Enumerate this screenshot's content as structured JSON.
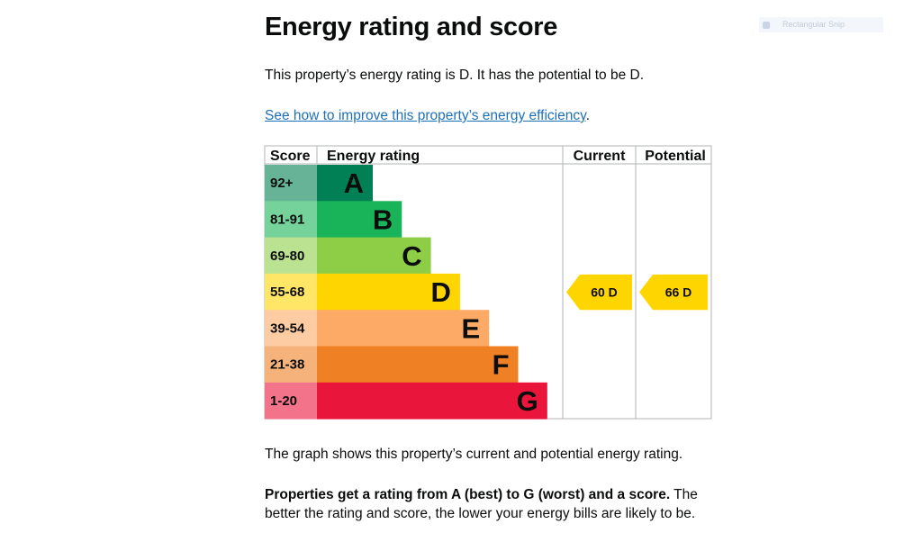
{
  "page": {
    "title": "Energy rating and score",
    "summary": "This property’s energy rating is D. It has the potential to be D.",
    "link_text": "See how to improve this property’s energy efficiency",
    "link_suffix": ".",
    "graph_note": "The graph shows this property’s current and potential energy rating.",
    "bold_note": "Properties get a rating from A (best) to G (worst) and a score.",
    "note_rest": " The better the rating and score, the lower your energy bills are likely to be.",
    "snip_label": "Rectangular Snip"
  },
  "chart_data": {
    "type": "bar",
    "headers": {
      "score": "Score",
      "rating": "Energy rating",
      "current": "Current",
      "potential": "Potential"
    },
    "bands": [
      {
        "letter": "A",
        "range": "92+",
        "color": "#008054",
        "score_color": "#66b398"
      },
      {
        "letter": "B",
        "range": "81-91",
        "color": "#19b459",
        "score_color": "#75d29b"
      },
      {
        "letter": "C",
        "range": "69-80",
        "color": "#8dce46",
        "score_color": "#bbe290"
      },
      {
        "letter": "D",
        "range": "55-68",
        "color": "#ffd500",
        "score_color": "#ffe666"
      },
      {
        "letter": "E",
        "range": "39-54",
        "color": "#fcaa65",
        "score_color": "#fdcca3"
      },
      {
        "letter": "F",
        "range": "21-38",
        "color": "#ef8023",
        "score_color": "#f5b37b"
      },
      {
        "letter": "G",
        "range": "1-20",
        "color": "#e9153b",
        "score_color": "#f2738a"
      }
    ],
    "current": {
      "score": 60,
      "letter": "D",
      "label": "60  D",
      "color": "#ffd500"
    },
    "potential": {
      "score": 66,
      "letter": "D",
      "label": "66  D",
      "color": "#ffd500"
    }
  }
}
